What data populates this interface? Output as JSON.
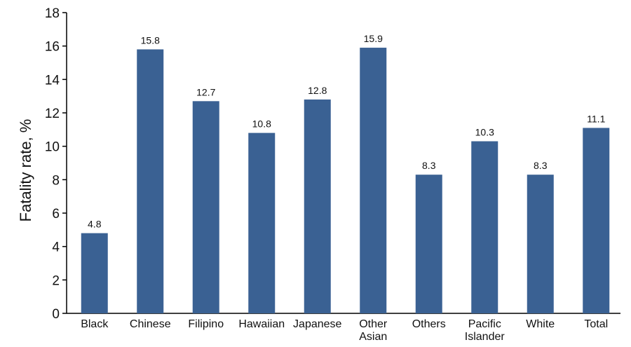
{
  "chart_data": {
    "type": "bar",
    "title": "",
    "xlabel": "",
    "ylabel": "Fatality rate, %",
    "ylim": [
      0,
      18
    ],
    "yticks": [
      0,
      2,
      4,
      6,
      8,
      10,
      12,
      14,
      16,
      18
    ],
    "categories": [
      [
        "Black"
      ],
      [
        "Chinese"
      ],
      [
        "Filipino"
      ],
      [
        "Hawaiian"
      ],
      [
        "Japanese"
      ],
      [
        "Other",
        "Asian"
      ],
      [
        "Others"
      ],
      [
        "Pacific",
        "Islander"
      ],
      [
        "White"
      ],
      [
        "Total"
      ]
    ],
    "values": [
      4.8,
      15.8,
      12.7,
      10.8,
      12.8,
      15.9,
      8.3,
      10.3,
      8.3,
      11.1
    ],
    "data_labels": [
      "4.8",
      "15.8",
      "12.7",
      "10.8",
      "12.8",
      "15.9",
      "8.3",
      "10.3",
      "8.3",
      "11.1"
    ],
    "bar_color": "#3A6193",
    "grid": false,
    "legend": "none"
  }
}
